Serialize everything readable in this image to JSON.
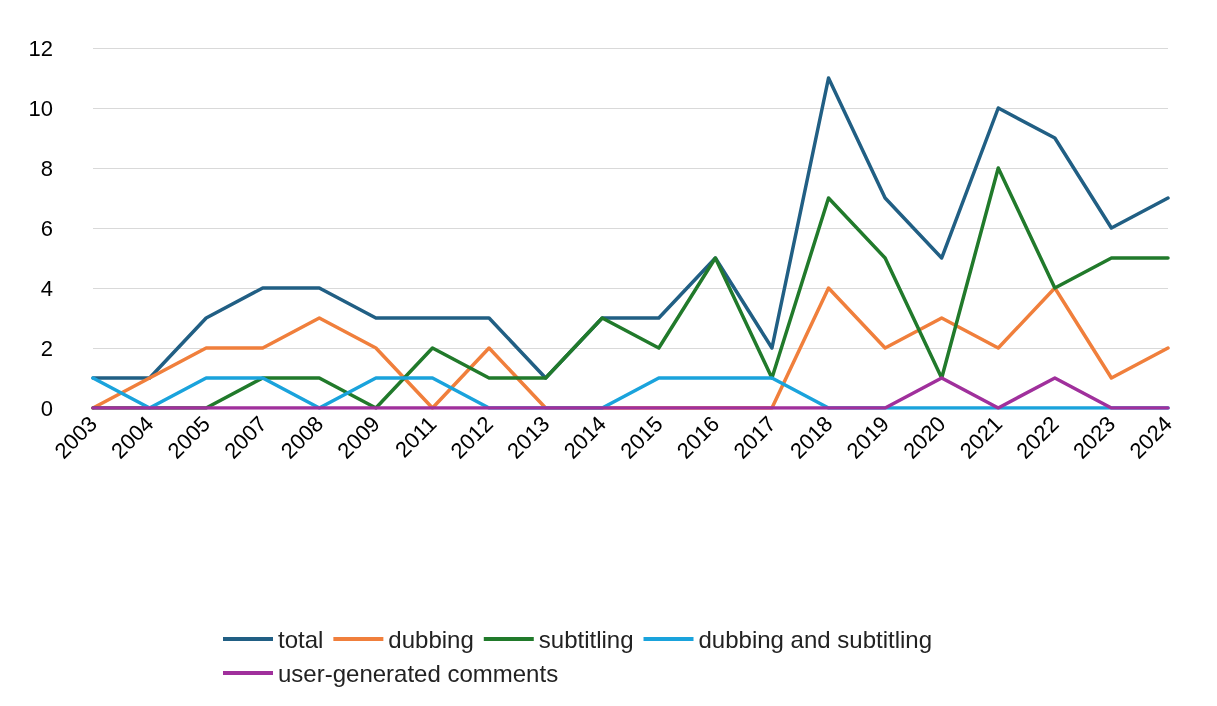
{
  "chart_data": {
    "type": "line",
    "categories": [
      "2003",
      "2004",
      "2005",
      "2007",
      "2008",
      "2009",
      "2011",
      "2012",
      "2013",
      "2014",
      "2015",
      "2016",
      "2017",
      "2018",
      "2019",
      "2020",
      "2021",
      "2022",
      "2023",
      "2024"
    ],
    "series": [
      {
        "name": "total",
        "color": "#215f84",
        "values": [
          1,
          1,
          3,
          4,
          4,
          3,
          3,
          3,
          1,
          3,
          3,
          5,
          2,
          11,
          7,
          5,
          10,
          9,
          6,
          7
        ]
      },
      {
        "name": "dubbing",
        "color": "#f07f3c",
        "values": [
          0,
          1,
          2,
          2,
          3,
          2,
          0,
          2,
          0,
          0,
          0,
          0,
          0,
          4,
          2,
          3,
          2,
          4,
          1,
          2
        ]
      },
      {
        "name": "subtitling",
        "color": "#217a2b",
        "values": [
          0,
          0,
          0,
          1,
          1,
          0,
          2,
          1,
          1,
          3,
          2,
          5,
          1,
          7,
          5,
          1,
          8,
          4,
          5,
          5
        ]
      },
      {
        "name": "dubbing and subtitling",
        "color": "#1aa3dc",
        "values": [
          1,
          0,
          1,
          1,
          0,
          1,
          1,
          0,
          0,
          0,
          1,
          1,
          1,
          0,
          0,
          0,
          0,
          0,
          0,
          0
        ]
      },
      {
        "name": "user-generated comments",
        "color": "#a0309c",
        "values": [
          0,
          0,
          0,
          0,
          0,
          0,
          0,
          0,
          0,
          0,
          0,
          0,
          0,
          0,
          0,
          1,
          0,
          1,
          0,
          0
        ]
      }
    ],
    "ylim": [
      0,
      12
    ],
    "yticks": [
      0,
      2,
      4,
      6,
      8,
      10,
      12
    ],
    "grid": "y",
    "legend": "bottom",
    "marker": "none",
    "line_style": "solid"
  }
}
